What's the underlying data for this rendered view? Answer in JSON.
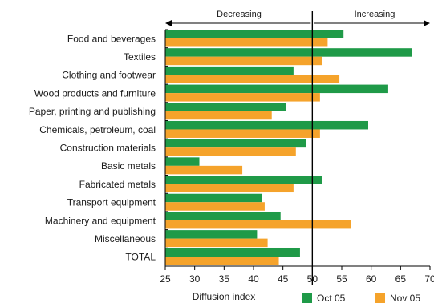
{
  "chart_data": {
    "type": "bar",
    "orientation": "horizontal",
    "categories": [
      "Food and beverages",
      "Textiles",
      "Clothing and footwear",
      "Wood products and furniture",
      "Paper, printing and publishing",
      "Chemicals, petroleum, coal",
      "Construction materials",
      "Basic metals",
      "Fabricated metals",
      "Transport equipment",
      "Machinery and equipment",
      "Miscellaneous",
      "TOTAL"
    ],
    "series": [
      {
        "name": "Oct 05",
        "color": "#1f9a48",
        "values": [
          55.3,
          66.9,
          46.8,
          62.9,
          45.5,
          59.5,
          48.9,
          30.8,
          51.6,
          41.4,
          44.6,
          40.6,
          47.9
        ]
      },
      {
        "name": "Nov 05",
        "color": "#f5a32b",
        "values": [
          52.6,
          51.6,
          54.6,
          51.3,
          43.1,
          51.3,
          47.2,
          38.1,
          46.8,
          41.9,
          56.6,
          42.4,
          44.3
        ]
      }
    ],
    "xlabel": "Diffusion index",
    "xlim": [
      25,
      70
    ],
    "xticks": [
      25,
      30,
      35,
      40,
      45,
      50,
      55,
      60,
      65,
      70
    ],
    "reference_line": 50,
    "annotations": {
      "left": "Decreasing",
      "right": "Increasing"
    },
    "legend_position": "bottom-right",
    "grid": false
  }
}
